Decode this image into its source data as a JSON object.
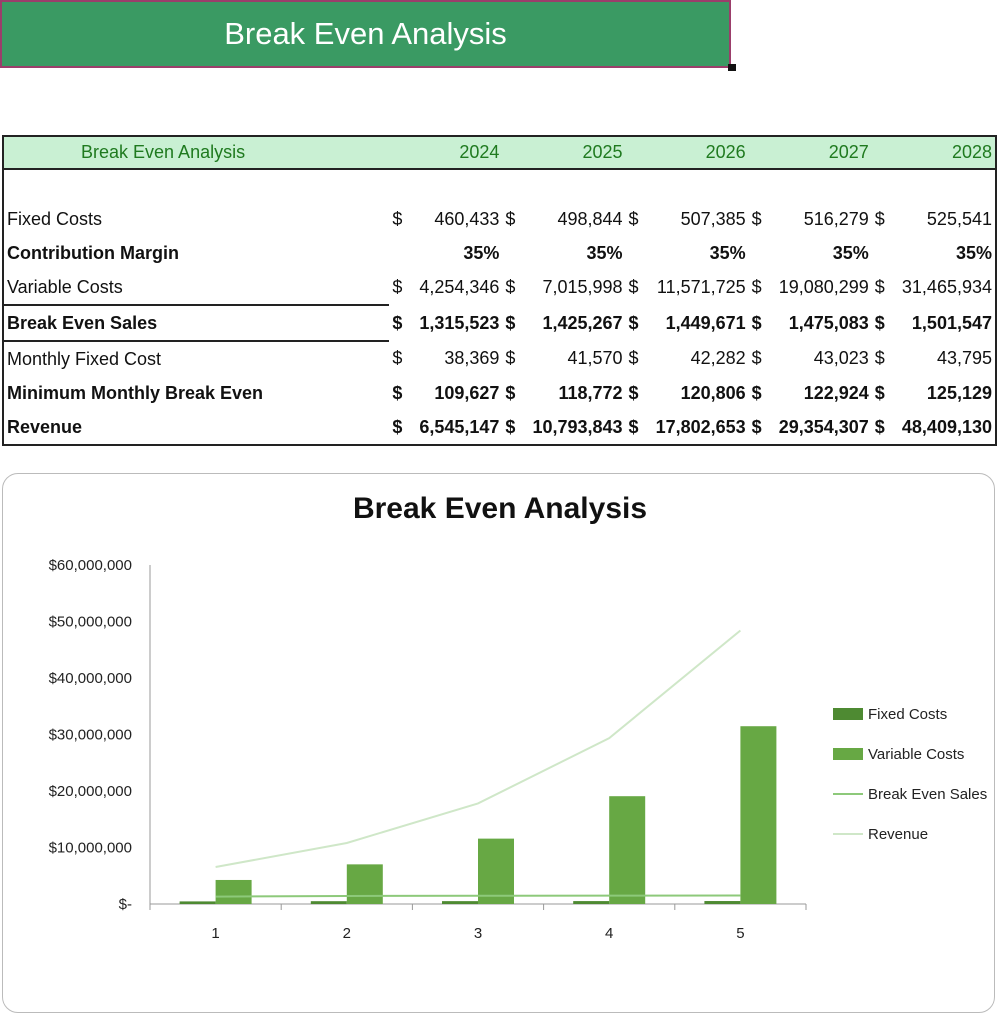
{
  "banner": {
    "title": "Break Even Analysis"
  },
  "table": {
    "header_label": "Break Even Analysis",
    "years": [
      "2024",
      "2025",
      "2026",
      "2027",
      "2028"
    ],
    "rows": [
      {
        "label": "Fixed Costs",
        "bold": false,
        "currency": true,
        "values": [
          "460,433",
          "498,844",
          "507,385",
          "516,279",
          "525,541"
        ]
      },
      {
        "label": "Contribution Margin",
        "bold": true,
        "currency": false,
        "values": [
          "35%",
          "35%",
          "35%",
          "35%",
          "35%"
        ]
      },
      {
        "label": "Variable Costs",
        "bold": false,
        "currency": true,
        "values": [
          "4,254,346",
          "7,015,998",
          "11,571,725",
          "19,080,299",
          "31,465,934"
        ]
      },
      {
        "label": "Break Even Sales",
        "bold": true,
        "currency": true,
        "values": [
          "1,315,523",
          "1,425,267",
          "1,449,671",
          "1,475,083",
          "1,501,547"
        ]
      },
      {
        "label": "Monthly Fixed Cost",
        "bold": false,
        "currency": true,
        "values": [
          "38,369",
          "41,570",
          "42,282",
          "43,023",
          "43,795"
        ]
      },
      {
        "label": "Minimum Monthly Break Even",
        "bold": true,
        "currency": true,
        "values": [
          "109,627",
          "118,772",
          "120,806",
          "122,924",
          "125,129"
        ]
      },
      {
        "label": "Revenue",
        "bold": true,
        "currency": true,
        "values": [
          "6,545,147",
          "10,793,843",
          "17,802,653",
          "29,354,307",
          "48,409,130"
        ]
      }
    ],
    "currency_symbol": "$"
  },
  "chart_data": {
    "type": "bar",
    "title": "Break Even Analysis",
    "categories": [
      "1",
      "2",
      "3",
      "4",
      "5"
    ],
    "ylim": [
      0,
      60000000
    ],
    "y_ticks": [
      0,
      10000000,
      20000000,
      30000000,
      40000000,
      50000000,
      60000000
    ],
    "y_tick_labels": [
      "$-",
      "$10,000,000",
      "$20,000,000",
      "$30,000,000",
      "$40,000,000",
      "$50,000,000",
      "$60,000,000"
    ],
    "legend_position": "right",
    "series": [
      {
        "name": "Fixed Costs",
        "kind": "bar",
        "color": "#4e8a32",
        "values": [
          460433,
          498844,
          507385,
          516279,
          525541
        ]
      },
      {
        "name": "Variable Costs",
        "kind": "bar",
        "color": "#67a844",
        "values": [
          4254346,
          7015998,
          11571725,
          19080299,
          31465934
        ]
      },
      {
        "name": "Break Even Sales",
        "kind": "line",
        "color": "#8dc97a",
        "values": [
          1315523,
          1425267,
          1449671,
          1475083,
          1501547
        ]
      },
      {
        "name": "Revenue",
        "kind": "line",
        "color": "#cfe7c8",
        "values": [
          6545147,
          10793843,
          17802653,
          29354307,
          48409130
        ]
      }
    ]
  }
}
